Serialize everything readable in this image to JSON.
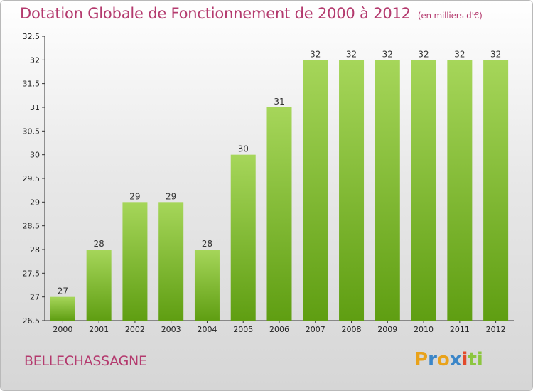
{
  "chart_data": {
    "type": "bar",
    "title": "Dotation Globale de Fonctionnement de 2000 à 2012",
    "subtitle": "(en milliers d'€)",
    "categories": [
      "2000",
      "2001",
      "2002",
      "2003",
      "2004",
      "2005",
      "2006",
      "2007",
      "2008",
      "2009",
      "2010",
      "2011",
      "2012"
    ],
    "values": [
      27,
      28,
      29,
      29,
      28,
      30,
      31,
      32,
      32,
      32,
      32,
      32,
      32
    ],
    "data_labels": [
      "27",
      "28",
      "29",
      "29",
      "28",
      "30",
      "31",
      "32",
      "32",
      "32",
      "32",
      "32",
      "32"
    ],
    "ylim": [
      26.5,
      32.5
    ],
    "yticks": [
      26.5,
      27,
      27.5,
      28,
      28.5,
      29,
      29.5,
      30,
      30.5,
      31,
      31.5,
      32,
      32.5
    ],
    "ytick_labels": [
      "26.5",
      "27",
      "27.5",
      "28",
      "28.5",
      "29",
      "29.5",
      "30",
      "30.5",
      "31",
      "31.5",
      "32",
      "32.5"
    ],
    "grid": false,
    "bar_color_top": "#a6d65a",
    "bar_color_bottom": "#5f9e12",
    "xlabel": "",
    "ylabel": ""
  },
  "footer": {
    "commune": "BELLECHASSAGNE"
  },
  "logo": {
    "letters": [
      "P",
      "r",
      "o",
      "x",
      "i",
      "t",
      "i"
    ],
    "colors": [
      "#e9a21a",
      "#3b86c8",
      "#e9a21a",
      "#3b86c8",
      "#e24a2b",
      "#8cc63f",
      "#8cc63f"
    ]
  },
  "colors": {
    "accent": "#b43a6e"
  }
}
